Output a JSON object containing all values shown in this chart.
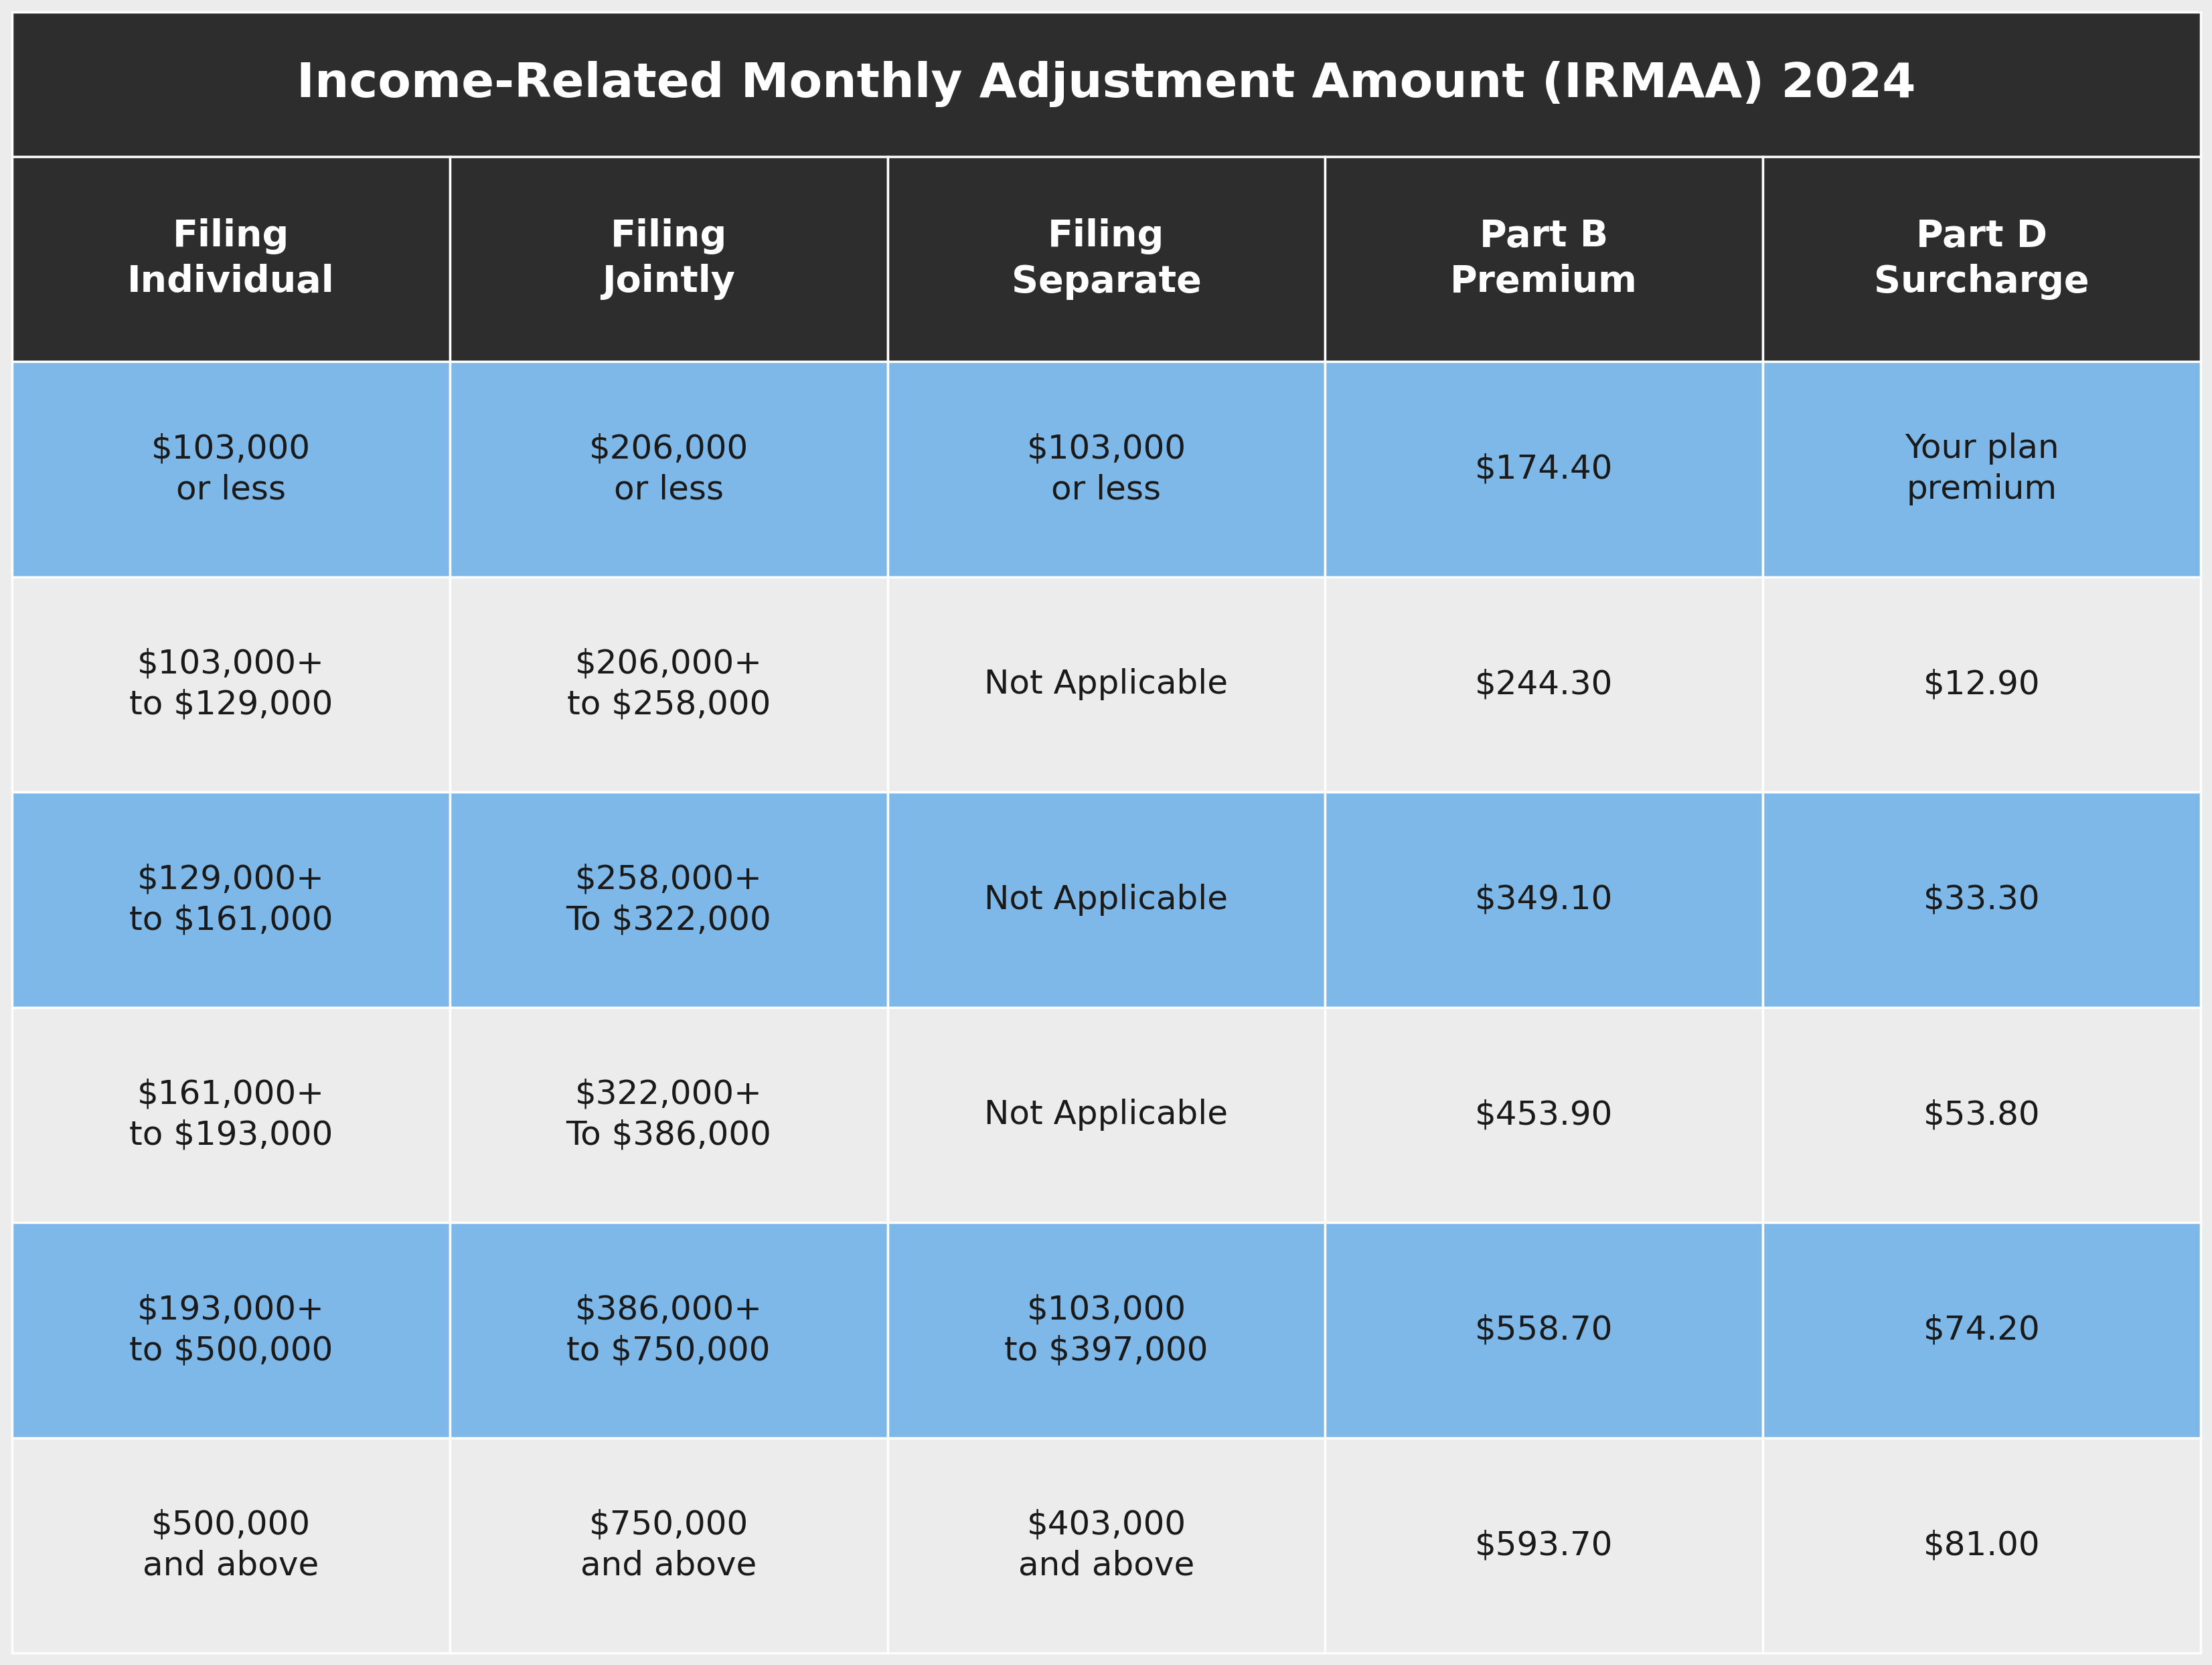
{
  "title": "Income-Related Monthly Adjustment Amount (IRMAA) 2024",
  "title_bg": "#2d2d2d",
  "title_color": "#ffffff",
  "header_bg": "#2d2d2d",
  "header_color": "#ffffff",
  "col_headers": [
    "Filing\nIndividual",
    "Filing\nJointly",
    "Filing\nSeparate",
    "Part B\nPremium",
    "Part D\nSurcharge"
  ],
  "rows": [
    [
      "$103,000\nor less",
      "$206,000\nor less",
      "$103,000\nor less",
      "$174.40",
      "Your plan\npremium"
    ],
    [
      "$103,000+\nto $129,000",
      "$206,000+\nto $258,000",
      "Not Applicable",
      "$244.30",
      "$12.90"
    ],
    [
      "$129,000+\nto $161,000",
      "$258,000+\nTo $322,000",
      "Not Applicable",
      "$349.10",
      "$33.30"
    ],
    [
      "$161,000+\nto $193,000",
      "$322,000+\nTo $386,000",
      "Not Applicable",
      "$453.90",
      "$53.80"
    ],
    [
      "$193,000+\nto $500,000",
      "$386,000+\nto $750,000",
      "$103,000\nto $397,000",
      "$558.70",
      "$74.20"
    ],
    [
      "$500,000\nand above",
      "$750,000\nand above",
      "$403,000\nand above",
      "$593.70",
      "$81.00"
    ]
  ],
  "row_colors": [
    "#7eb8e8",
    "#ececec",
    "#7eb8e8",
    "#ececec",
    "#7eb8e8",
    "#ececec"
  ],
  "border_color": "#ffffff",
  "fig_bg": "#ececec",
  "title_fontsize": 52,
  "header_fontsize": 40,
  "data_fontsize": 36
}
